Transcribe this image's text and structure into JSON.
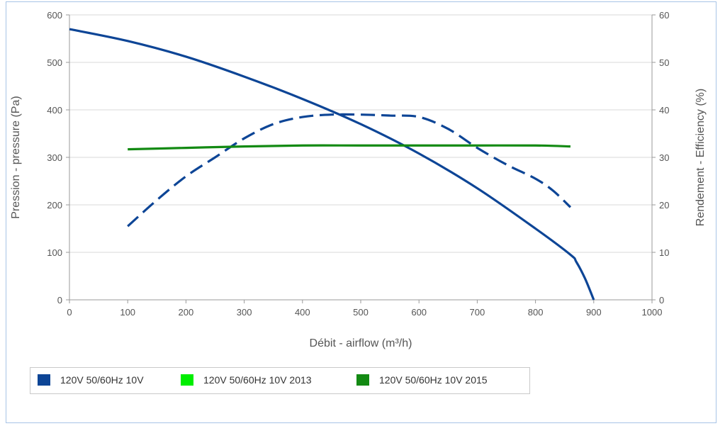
{
  "chart_data": {
    "type": "line",
    "xlabel": "Débit - airflow (m³/h)",
    "ylabel_left": "Pression - pressure (Pa)",
    "ylabel_right": "Rendement - Efficiency (%)",
    "xlim": [
      0,
      1000
    ],
    "ylim_left": [
      0,
      600
    ],
    "ylim_right": [
      0,
      60
    ],
    "x_ticks": [
      "0",
      "100",
      "200",
      "300",
      "400",
      "500",
      "600",
      "700",
      "800",
      "900",
      "1000"
    ],
    "y_ticks_left": [
      "0",
      "100",
      "200",
      "300",
      "400",
      "500",
      "600"
    ],
    "y_ticks_right": [
      "0",
      "10",
      "20",
      "30",
      "40",
      "50",
      "60"
    ],
    "grid": true,
    "legend_position": "bottom-left",
    "series": [
      {
        "name": "120V 50/60Hz 10V",
        "color": "#0d4596",
        "axis": "left",
        "style": "solid",
        "x": [
          0,
          100,
          200,
          300,
          400,
          500,
          600,
          700,
          800,
          860,
          870,
          885,
          900
        ],
        "y": [
          570,
          545,
          512,
          470,
          423,
          370,
          308,
          235,
          150,
          95,
          80,
          45,
          0
        ]
      },
      {
        "name": "",
        "color": "#0d4596",
        "axis": "right",
        "style": "dashed",
        "x": [
          100,
          150,
          200,
          250,
          300,
          350,
          400,
          450,
          500,
          550,
          600,
          650,
          700,
          750,
          800,
          830,
          860
        ],
        "y": [
          15.5,
          21,
          26,
          30,
          34,
          37,
          38.5,
          39,
          39,
          38.8,
          38.5,
          36,
          32,
          28.5,
          25.5,
          23,
          19.5
        ]
      },
      {
        "name": "120V 50/60Hz 10V 2013",
        "color": "#00ee00",
        "axis": "right",
        "style": "solid",
        "x": [],
        "y": []
      },
      {
        "name": "120V 50/60Hz 10V 2015",
        "color": "#138a13",
        "axis": "right",
        "style": "solid",
        "x": [
          100,
          200,
          300,
          400,
          500,
          600,
          700,
          800,
          860
        ],
        "y": [
          31.7,
          32,
          32.3,
          32.5,
          32.5,
          32.5,
          32.5,
          32.5,
          32.3
        ]
      }
    ]
  }
}
